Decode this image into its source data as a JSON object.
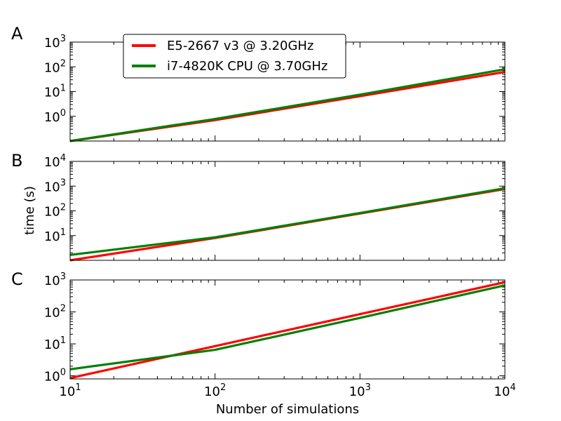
{
  "chart_data": [
    {
      "type": "line",
      "panel_label": "A",
      "xscale": "log",
      "yscale": "log",
      "xlim": [
        10,
        10000
      ],
      "ylim": [
        0.1,
        1000
      ],
      "x_ticks": [
        10,
        100,
        1000,
        10000
      ],
      "y_ticks": [
        1,
        10,
        100,
        1000
      ],
      "y_tick_labels": [
        {
          "base": "10",
          "exp": "0"
        },
        {
          "base": "10",
          "exp": "1"
        },
        {
          "base": "10",
          "exp": "2"
        },
        {
          "base": "10",
          "exp": "3"
        }
      ],
      "xlabel": "",
      "ylabel": "",
      "legend_position": "top-left",
      "series": [
        {
          "name": "E5-2667 v3 @ 3.20GHz",
          "color": "#ff0000",
          "x": [
            10,
            100,
            1000,
            10000
          ],
          "y": [
            0.1,
            0.7,
            6.5,
            62
          ]
        },
        {
          "name": "i7-4820K CPU @ 3.70GHz",
          "color": "#008000",
          "x": [
            10,
            100,
            1000,
            10000
          ],
          "y": [
            0.1,
            0.78,
            7.5,
            80
          ]
        }
      ]
    },
    {
      "type": "line",
      "panel_label": "B",
      "xscale": "log",
      "yscale": "log",
      "xlim": [
        10,
        10000
      ],
      "ylim": [
        1,
        10000
      ],
      "x_ticks": [
        10,
        100,
        1000,
        10000
      ],
      "y_ticks": [
        10,
        100,
        1000,
        10000
      ],
      "y_tick_labels": [
        {
          "base": "10",
          "exp": "1"
        },
        {
          "base": "10",
          "exp": "2"
        },
        {
          "base": "10",
          "exp": "3"
        },
        {
          "base": "10",
          "exp": "4"
        }
      ],
      "xlabel": "",
      "ylabel": "time (s)",
      "series": [
        {
          "name": "E5-2667 v3 @ 3.20GHz",
          "color": "#ff0000",
          "x": [
            10,
            100,
            1000,
            10000
          ],
          "y": [
            1.0,
            8.0,
            78,
            760
          ]
        },
        {
          "name": "i7-4820K CPU @ 3.70GHz",
          "color": "#008000",
          "x": [
            10,
            100,
            1000,
            10000
          ],
          "y": [
            1.65,
            8.5,
            82,
            820
          ]
        }
      ]
    },
    {
      "type": "line",
      "panel_label": "C",
      "xscale": "log",
      "yscale": "log",
      "xlim": [
        10,
        10000
      ],
      "ylim": [
        0.8,
        1000
      ],
      "x_ticks": [
        10,
        100,
        1000,
        10000
      ],
      "x_tick_labels": [
        {
          "base": "10",
          "exp": "1"
        },
        {
          "base": "10",
          "exp": "2"
        },
        {
          "base": "10",
          "exp": "3"
        },
        {
          "base": "10",
          "exp": "4"
        }
      ],
      "y_ticks": [
        1,
        10,
        100,
        1000
      ],
      "y_tick_labels": [
        {
          "base": "10",
          "exp": "0"
        },
        {
          "base": "10",
          "exp": "1"
        },
        {
          "base": "10",
          "exp": "2"
        },
        {
          "base": "10",
          "exp": "3"
        }
      ],
      "xlabel": "Number of simulations",
      "ylabel": "",
      "series": [
        {
          "name": "E5-2667 v3 @ 3.20GHz",
          "color": "#ff0000",
          "x": [
            10,
            100,
            1000,
            10000
          ],
          "y": [
            0.85,
            8.5,
            85,
            850
          ]
        },
        {
          "name": "i7-4820K CPU @ 3.70GHz",
          "color": "#008000",
          "x": [
            10,
            100,
            1000,
            10000
          ],
          "y": [
            1.6,
            6.5,
            65,
            680
          ]
        }
      ]
    }
  ]
}
